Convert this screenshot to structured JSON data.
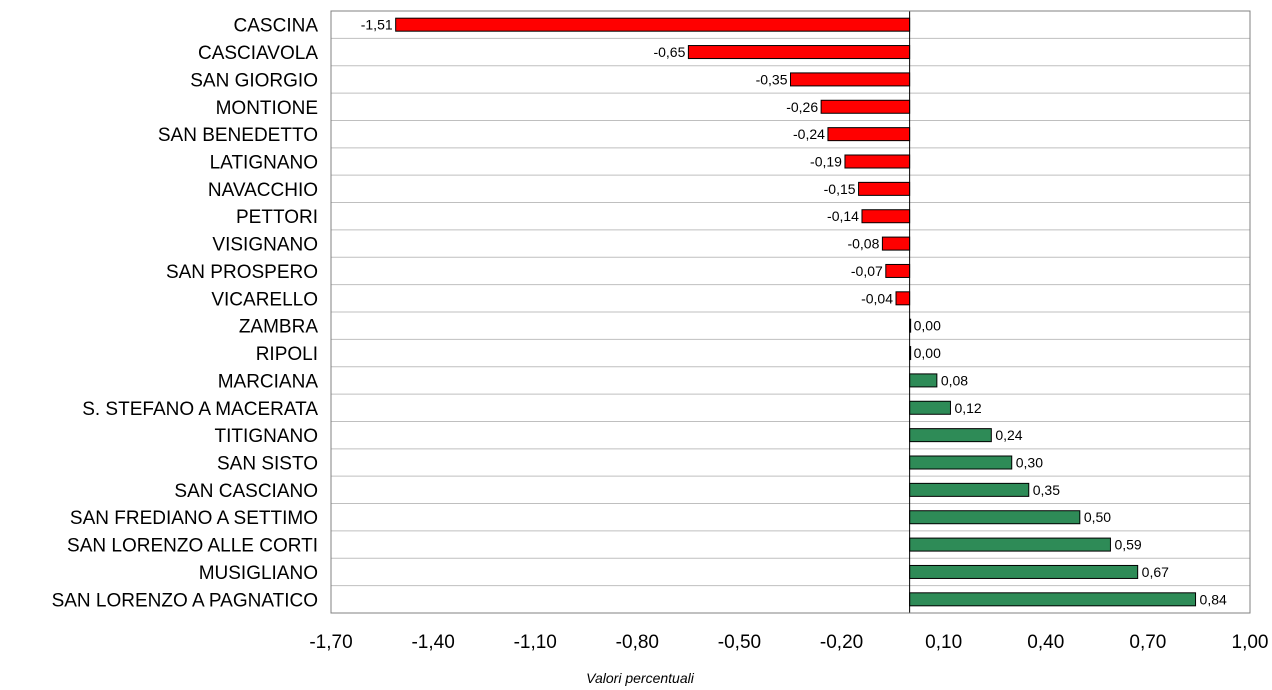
{
  "chart_data": {
    "type": "bar",
    "orientation": "horizontal",
    "title": "",
    "xlabel": "Valori percentuali",
    "ylabel": "",
    "xlim": [
      -1.7,
      1.0
    ],
    "xticks": [
      -1.7,
      -1.4,
      -1.1,
      -0.8,
      -0.5,
      -0.2,
      0.1,
      0.4,
      0.7,
      1.0
    ],
    "xtick_labels": [
      "-1,70",
      "-1,40",
      "-1,10",
      "-0,80",
      "-0,50",
      "-0,20",
      "0,10",
      "0,40",
      "0,70",
      "1,00"
    ],
    "grid": "horizontal lines between categories",
    "categories": [
      "CASCINA",
      "CASCIAVOLA",
      "SAN GIORGIO",
      "MONTIONE",
      "SAN BENEDETTO",
      "LATIGNANO",
      "NAVACCHIO",
      "PETTORI",
      "VISIGNANO",
      "SAN PROSPERO",
      "VICARELLO",
      "ZAMBRA",
      "RIPOLI",
      "MARCIANA",
      "S. STEFANO A MACERATA",
      "TITIGNANO",
      "SAN SISTO",
      "SAN CASCIANO",
      "SAN FREDIANO A SETTIMO",
      "SAN LORENZO ALLE CORTI",
      "MUSIGLIANO",
      "SAN LORENZO A PAGNATICO"
    ],
    "values": [
      -1.51,
      -0.65,
      -0.35,
      -0.26,
      -0.24,
      -0.19,
      -0.15,
      -0.14,
      -0.08,
      -0.07,
      -0.04,
      0.0,
      0.0,
      0.08,
      0.12,
      0.24,
      0.3,
      0.35,
      0.5,
      0.59,
      0.67,
      0.84
    ],
    "value_labels": [
      "-1,51",
      "-0,65",
      "-0,35",
      "-0,26",
      "-0,24",
      "-0,19",
      "-0,15",
      "-0,14",
      "-0,08",
      "-0,07",
      "-0,04",
      "0,00",
      "0,00",
      "0,08",
      "0,12",
      "0,24",
      "0,30",
      "0,35",
      "0,50",
      "0,59",
      "0,67",
      "0,84"
    ],
    "colors": {
      "negative": "#ff0000",
      "positive": "#2e8b57",
      "bar_stroke": "#000000",
      "grid": "#bfbfbf",
      "frame": "#808080"
    }
  }
}
